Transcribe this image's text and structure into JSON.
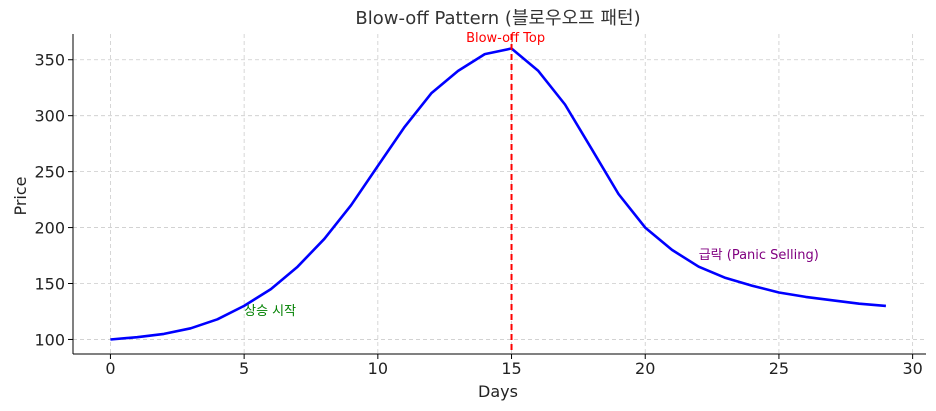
{
  "chart_data": {
    "type": "line",
    "title": "Blow-off Pattern (블로우오프 패턴)",
    "xlabel": "Days",
    "ylabel": "Price",
    "xlim": [
      -1.4,
      30.5
    ],
    "ylim": [
      87,
      373
    ],
    "xticks": [
      0,
      5,
      10,
      15,
      20,
      25,
      30
    ],
    "yticks": [
      100,
      150,
      200,
      250,
      300,
      350
    ],
    "grid": true,
    "colors": {
      "line": "#0000ff",
      "vline": "#ff0000"
    },
    "series": [
      {
        "x": [
          0,
          1,
          2,
          3,
          4,
          5,
          6,
          7,
          8,
          9,
          10,
          11,
          12,
          13,
          14,
          15,
          16,
          17,
          18,
          19,
          20,
          21,
          22,
          23,
          24,
          25,
          26,
          27,
          28,
          29
        ],
        "values": [
          100,
          102,
          105,
          110,
          118,
          130,
          145,
          165,
          190,
          220,
          255,
          290,
          320,
          340,
          355,
          360,
          340,
          310,
          270,
          230,
          200,
          180,
          165,
          155,
          148,
          142,
          138,
          135,
          132,
          130
        ]
      }
    ],
    "vline": {
      "x": 15
    },
    "annotations": [
      {
        "text": "Blow-off Top",
        "x": 13.3,
        "y": 366,
        "color": "#ff0000"
      },
      {
        "text": "상승 시작",
        "x": 5,
        "y": 122,
        "color": "#008000"
      },
      {
        "text": "급락 (Panic Selling)",
        "x": 22,
        "y": 172,
        "color": "#800080"
      }
    ]
  }
}
